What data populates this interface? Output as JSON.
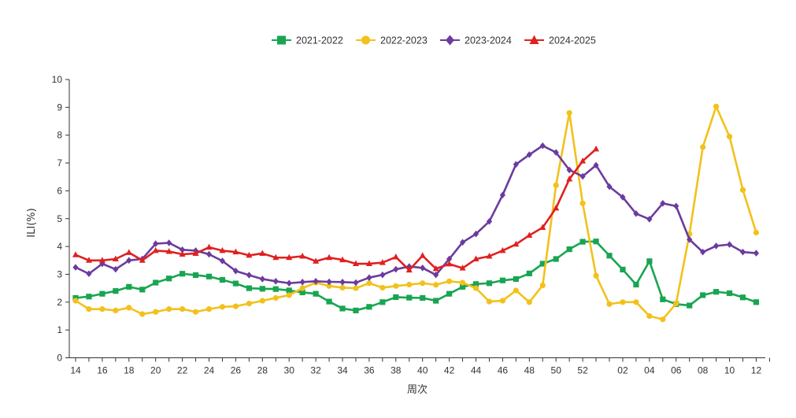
{
  "chart_data": {
    "type": "line",
    "xlabel": "周次",
    "ylabel": "ILI(%)",
    "ylim": [
      0,
      10
    ],
    "yticks": [
      "0",
      "1",
      "2",
      "3",
      "4",
      "5",
      "6",
      "7",
      "8",
      "9",
      "10"
    ],
    "x": [
      "14",
      "15",
      "16",
      "17",
      "18",
      "19",
      "20",
      "21",
      "22",
      "23",
      "24",
      "25",
      "26",
      "27",
      "28",
      "29",
      "30",
      "31",
      "32",
      "33",
      "34",
      "35",
      "36",
      "37",
      "38",
      "39",
      "40",
      "41",
      "42",
      "43",
      "44",
      "45",
      "46",
      "47",
      "48",
      "49",
      "50",
      "51",
      "52",
      "53",
      "01",
      "02",
      "03",
      "04",
      "05",
      "06",
      "07",
      "08",
      "09",
      "10",
      "11",
      "12",
      "13"
    ],
    "xticks": [
      "14",
      "16",
      "18",
      "20",
      "22",
      "24",
      "26",
      "28",
      "30",
      "32",
      "34",
      "36",
      "38",
      "40",
      "42",
      "44",
      "46",
      "48",
      "50",
      "52",
      "02",
      "04",
      "06",
      "08",
      "10",
      "12"
    ],
    "legend_position": "top-center",
    "grid": false,
    "series": [
      {
        "name": "2021-2022",
        "color": "#18a551",
        "marker": "square",
        "values": [
          2.15,
          2.2,
          2.3,
          2.4,
          2.55,
          2.45,
          2.7,
          2.85,
          3.02,
          2.97,
          2.92,
          2.8,
          2.67,
          2.5,
          2.48,
          2.47,
          2.42,
          2.35,
          2.3,
          2.02,
          1.77,
          1.7,
          1.83,
          2.0,
          2.18,
          2.16,
          2.15,
          2.05,
          2.3,
          2.55,
          2.65,
          2.68,
          2.78,
          2.83,
          3.03,
          3.38,
          3.55,
          3.9,
          4.17,
          4.18,
          3.67,
          3.17,
          2.63,
          3.47,
          2.1,
          1.93,
          1.88,
          2.25,
          2.37,
          2.32,
          2.17,
          2.0,
          null
        ]
      },
      {
        "name": "2022-2023",
        "color": "#f2c11b",
        "marker": "circle",
        "values": [
          2.05,
          1.75,
          1.75,
          1.7,
          1.8,
          1.57,
          1.65,
          1.75,
          1.75,
          1.65,
          1.75,
          1.83,
          1.85,
          1.95,
          2.05,
          2.15,
          2.25,
          2.5,
          2.7,
          2.58,
          2.52,
          2.5,
          2.68,
          2.52,
          2.58,
          2.63,
          2.68,
          2.62,
          2.75,
          2.7,
          2.5,
          2.02,
          2.05,
          2.42,
          2.0,
          2.6,
          6.2,
          8.8,
          5.55,
          2.95,
          1.93,
          2.0,
          2.0,
          1.5,
          1.38,
          1.95,
          4.45,
          7.57,
          9.03,
          7.95,
          6.03,
          4.5,
          null
        ]
      },
      {
        "name": "2023-2024",
        "color": "#6b3b9e",
        "marker": "diamond",
        "values": [
          3.25,
          3.02,
          3.38,
          3.18,
          3.5,
          3.55,
          4.1,
          4.13,
          3.88,
          3.85,
          3.72,
          3.48,
          3.12,
          2.97,
          2.83,
          2.75,
          2.68,
          2.72,
          2.75,
          2.73,
          2.72,
          2.7,
          2.88,
          2.98,
          3.18,
          3.28,
          3.23,
          2.98,
          3.55,
          4.15,
          4.45,
          4.9,
          5.85,
          6.95,
          7.3,
          7.62,
          7.38,
          6.75,
          6.52,
          6.92,
          6.15,
          5.77,
          5.18,
          4.98,
          5.55,
          5.45,
          4.25,
          3.8,
          4.02,
          4.07,
          3.8,
          3.76,
          null
        ]
      },
      {
        "name": "2024-2025",
        "color": "#e02020",
        "marker": "triangle",
        "values": [
          3.7,
          3.5,
          3.5,
          3.55,
          3.78,
          3.5,
          3.85,
          3.82,
          3.72,
          3.75,
          3.97,
          3.85,
          3.8,
          3.68,
          3.75,
          3.6,
          3.6,
          3.65,
          3.47,
          3.6,
          3.52,
          3.38,
          3.38,
          3.42,
          3.62,
          3.15,
          3.67,
          3.2,
          3.37,
          3.22,
          3.55,
          3.65,
          3.85,
          4.08,
          4.4,
          4.68,
          5.38,
          6.42,
          7.07,
          7.5,
          null,
          null,
          null,
          null,
          null,
          null,
          null,
          null,
          null,
          null,
          null,
          null,
          null
        ]
      }
    ]
  }
}
